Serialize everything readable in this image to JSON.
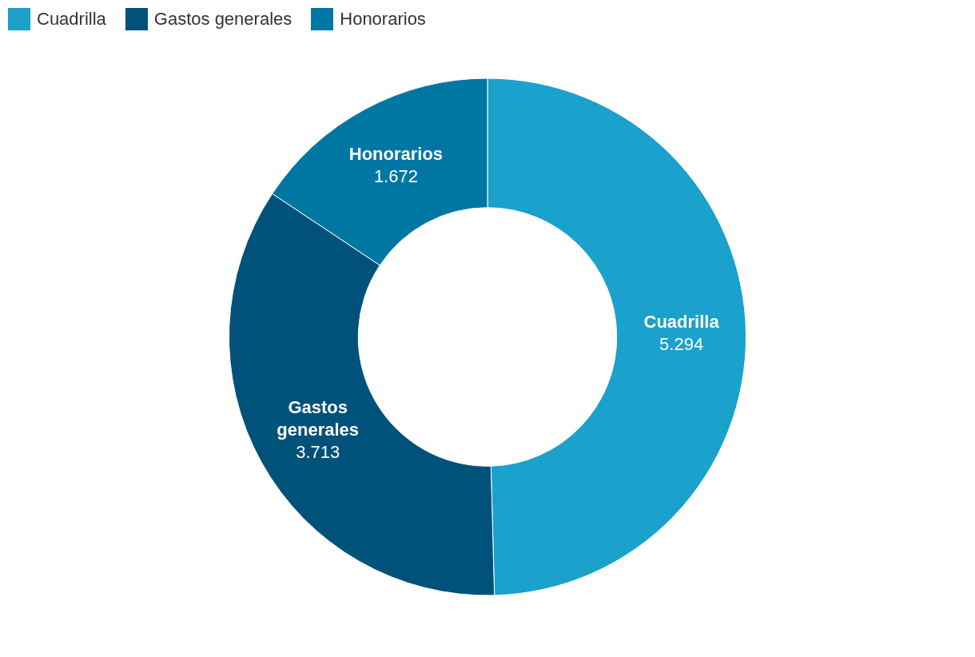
{
  "chart_data": {
    "type": "donut",
    "categories": [
      "Cuadrilla",
      "Gastos generales",
      "Honorarios"
    ],
    "values": [
      5294,
      3713,
      1672
    ],
    "value_labels": [
      "5.294",
      "3.713",
      "1.672"
    ],
    "colors": [
      "#1aa1cc",
      "#00527a",
      "#0077a3"
    ],
    "legend": "top left"
  }
}
